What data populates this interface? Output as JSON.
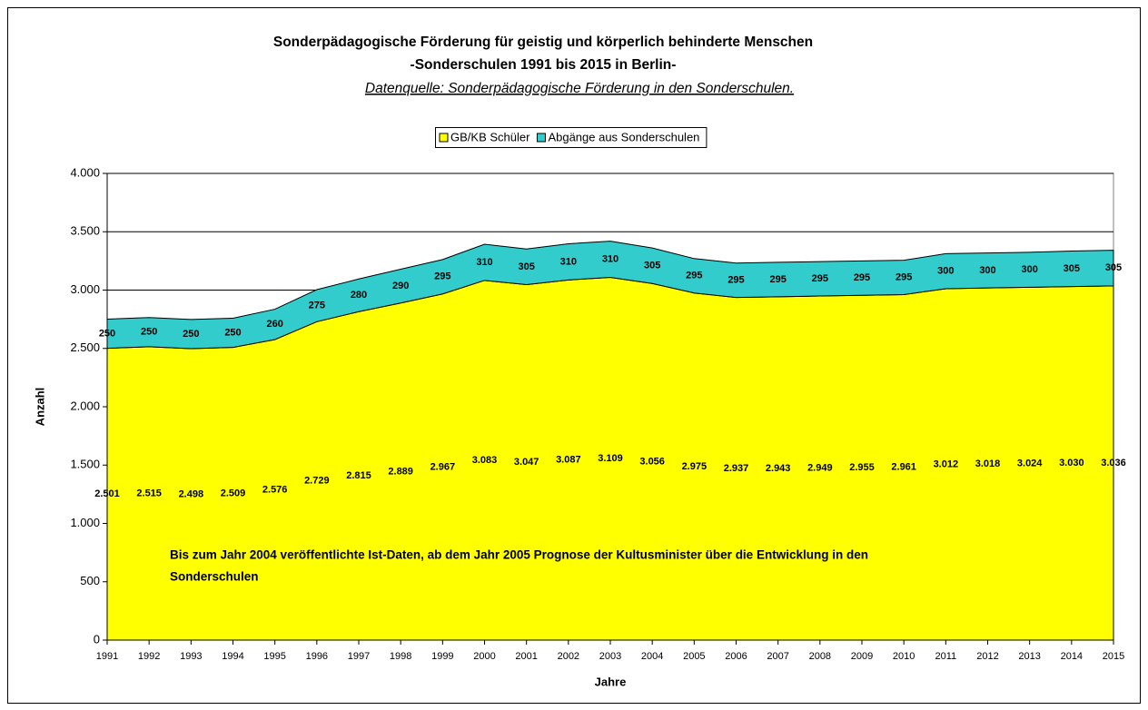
{
  "chart_data": {
    "type": "stacked_area",
    "title": [
      "Sonderpädagogische Förderung für geistig und körperlich behinderte Menschen",
      "-Sonderschulen 1991 bis 2015 in Berlin-"
    ],
    "subtitle": "Datenquelle: Sonderpädagogische Förderung in den Sonderschulen.",
    "y_label": "Anzahl",
    "x_label": "Jahre",
    "annotation": [
      "Bis zum Jahr 2004 veröffentlichte Ist-Daten, ab dem Jahr 2005 Prognose der Kultusminister über die Entwicklung in den",
      "Sonderschulen"
    ],
    "categories": [
      "1991",
      "1992",
      "1993",
      "1994",
      "1995",
      "1996",
      "1997",
      "1998",
      "1999",
      "2000",
      "2001",
      "2002",
      "2003",
      "2004",
      "2005",
      "2006",
      "2007",
      "2008",
      "2009",
      "2010",
      "2011",
      "2012",
      "2013",
      "2014",
      "2015"
    ],
    "series": [
      {
        "name": "GB/KB Schüler",
        "color": "#ffff00",
        "values": [
          2501,
          2515,
          2498,
          2509,
          2576,
          2729,
          2815,
          2889,
          2967,
          3083,
          3047,
          3087,
          3109,
          3056,
          2975,
          2937,
          2943,
          2949,
          2955,
          2961,
          3012,
          3018,
          3024,
          3030,
          3036
        ],
        "value_labels": [
          "2.501",
          "2.515",
          "2.498",
          "2.509",
          "2.576",
          "2.729",
          "2.815",
          "2.889",
          "2.967",
          "3.083",
          "3.047",
          "3.087",
          "3.109",
          "3.056",
          "2.975",
          "2.937",
          "2.943",
          "2.949",
          "2.955",
          "2.961",
          "3.012",
          "3.018",
          "3.024",
          "3.030",
          "3.036"
        ]
      },
      {
        "name": "Abgänge aus Sonderschulen",
        "color": "#33cccc",
        "values": [
          250,
          250,
          250,
          250,
          260,
          275,
          280,
          290,
          295,
          310,
          305,
          310,
          310,
          305,
          295,
          295,
          295,
          295,
          295,
          295,
          300,
          300,
          300,
          305,
          305
        ]
      }
    ],
    "ylim": [
      0,
      4000
    ],
    "yticks": [
      0,
      500,
      {
        "value": 1000,
        "label": "1.000"
      },
      {
        "value": 1500,
        "label": "1.500"
      },
      {
        "value": 2000,
        "label": "2.000"
      },
      {
        "value": 2500,
        "label": "2.500"
      },
      {
        "value": 3000,
        "label": "3.000"
      },
      {
        "value": 3500,
        "label": "3.500"
      },
      {
        "value": 4000,
        "label": "4.000"
      }
    ],
    "grid": true,
    "legend": "top"
  }
}
